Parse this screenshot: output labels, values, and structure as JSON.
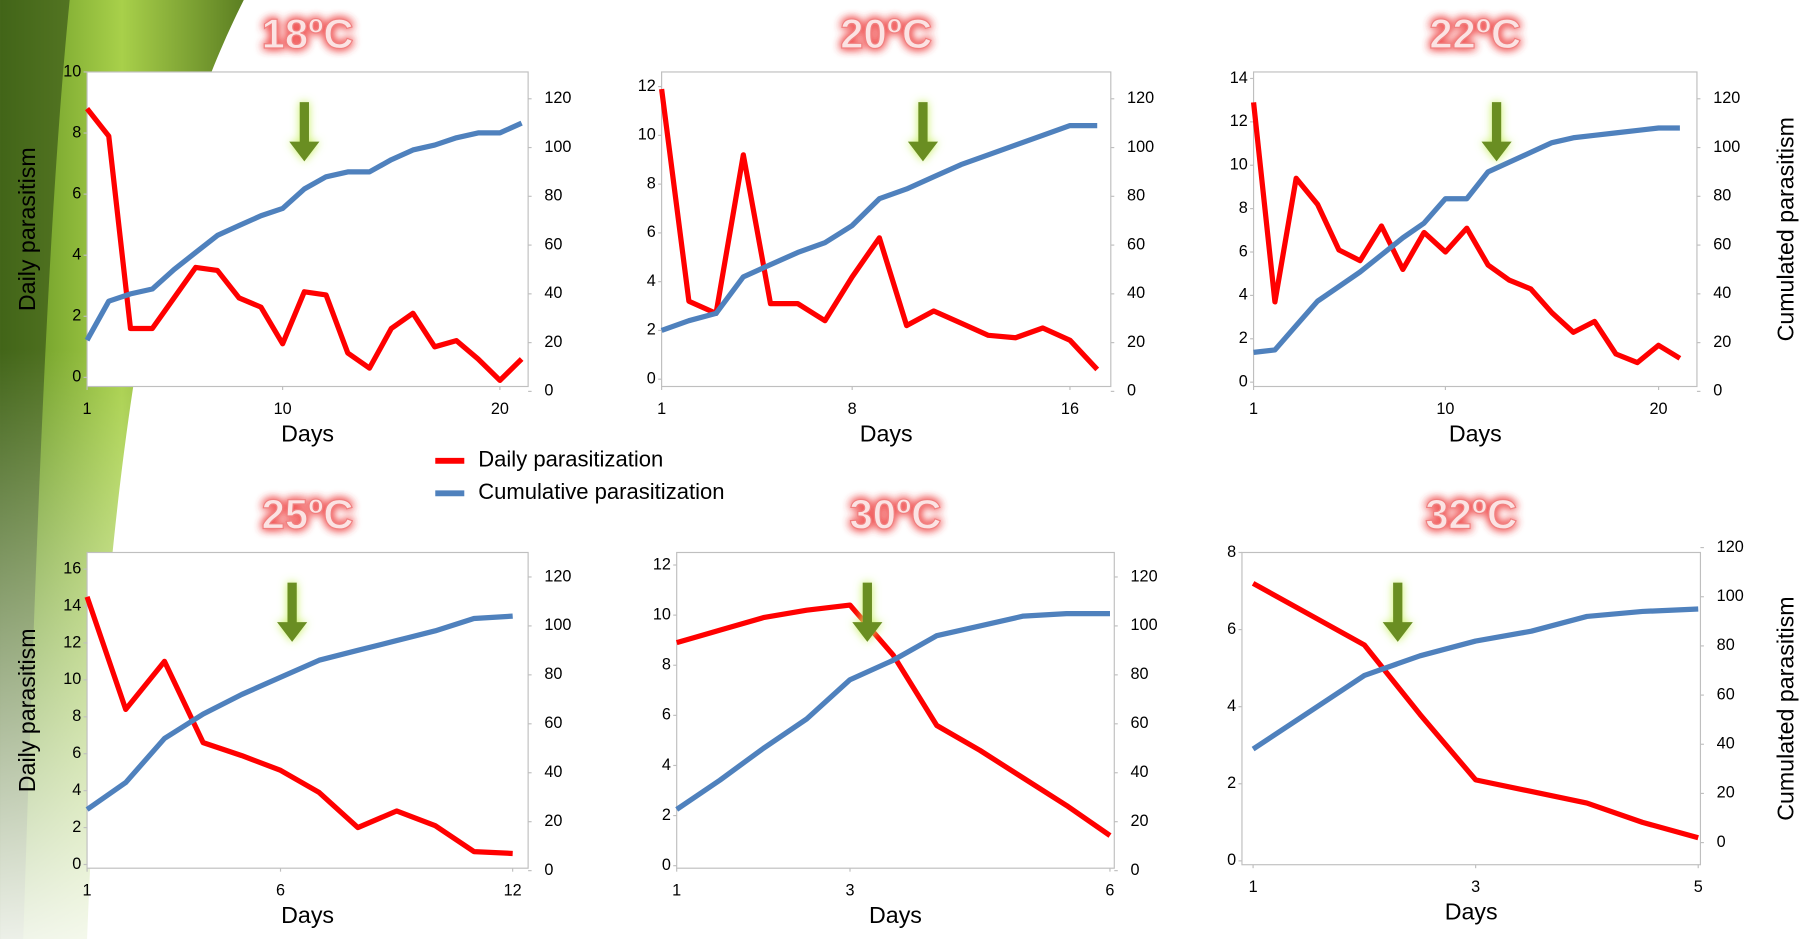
{
  "chart_data": [
    {
      "type": "line",
      "title": "18ºC",
      "xlabel": "Days",
      "ylabel": "Daily parasitism",
      "x": [
        1,
        2,
        3,
        4,
        5,
        6,
        7,
        8,
        9,
        10,
        11,
        12,
        13,
        14,
        15,
        16,
        17,
        18,
        19,
        20,
        21
      ],
      "xlim": [
        1,
        21.3
      ],
      "xticks": [
        1,
        10,
        20
      ],
      "ylim": [
        -0.3,
        10
      ],
      "yticks": [
        0,
        2,
        4,
        6,
        8,
        10
      ],
      "y2lim": [
        2,
        131
      ],
      "y2ticks": [
        0,
        20,
        40,
        60,
        80,
        100,
        120
      ],
      "arrow_x": 11,
      "series": [
        {
          "name": "Daily parasitization",
          "color": "#ff0000",
          "values": [
            8.8,
            7.9,
            1.6,
            1.6,
            2.6,
            3.6,
            3.5,
            2.6,
            2.3,
            1.1,
            2.8,
            2.7,
            0.8,
            0.3,
            1.6,
            2.1,
            1.0,
            1.2,
            0.6,
            -0.1,
            0.6
          ]
        },
        {
          "name": "Cumulative parasitization",
          "color": "#4f81bd",
          "axis": "y2",
          "values": [
            21,
            37,
            40,
            42,
            50,
            57,
            64,
            68,
            72,
            75,
            83,
            88,
            90,
            90,
            95,
            99,
            101,
            104,
            106,
            106,
            110
          ]
        }
      ]
    },
    {
      "type": "line",
      "title": "20ºC",
      "xlabel": "Days",
      "x": [
        1,
        2,
        3,
        4,
        5,
        6,
        7,
        8,
        9,
        10,
        11,
        12,
        13,
        14,
        15,
        16,
        17
      ],
      "xlim": [
        1,
        17.5
      ],
      "xticks": [
        1,
        8,
        16
      ],
      "ylim": [
        -0.3,
        12.6
      ],
      "yticks": [
        0,
        2,
        4,
        6,
        8,
        10,
        12
      ],
      "y2lim": [
        2,
        131
      ],
      "y2ticks": [
        0,
        20,
        40,
        60,
        80,
        100,
        120
      ],
      "arrow_x": 10.6,
      "series": [
        {
          "name": "Daily parasitization",
          "color": "#ff0000",
          "values": [
            11.9,
            3.2,
            2.7,
            9.2,
            3.1,
            3.1,
            2.4,
            4.2,
            5.8,
            2.2,
            2.8,
            2.3,
            1.8,
            1.7,
            2.1,
            1.6,
            0.4
          ]
        },
        {
          "name": "Cumulative parasitization",
          "color": "#4f81bd",
          "axis": "y2",
          "values": [
            25,
            29,
            32,
            47,
            52,
            57,
            61,
            68,
            79,
            83,
            88,
            93,
            97,
            101,
            105,
            109,
            109
          ]
        }
      ]
    },
    {
      "type": "line",
      "title": "22ºC",
      "xlabel": "Days",
      "y2label": "Cumulated parasitism",
      "x": [
        1,
        2,
        3,
        4,
        5,
        6,
        7,
        8,
        9,
        10,
        11,
        12,
        13,
        14,
        15,
        16,
        17,
        18,
        19,
        20,
        21
      ],
      "xlim": [
        1,
        21.8
      ],
      "xticks": [
        1,
        10,
        20
      ],
      "ylim": [
        -0.2,
        14.3
      ],
      "yticks": [
        0,
        2,
        4,
        6,
        8,
        10,
        12,
        14
      ],
      "y2lim": [
        2,
        131
      ],
      "y2ticks": [
        0,
        20,
        40,
        60,
        80,
        100,
        120
      ],
      "arrow_x": 12.4,
      "series": [
        {
          "name": "Daily parasitization",
          "color": "#ff0000",
          "values": [
            12.9,
            3.7,
            9.4,
            8.2,
            6.1,
            5.6,
            7.2,
            5.2,
            6.9,
            6.0,
            7.1,
            5.4,
            4.7,
            4.3,
            3.2,
            2.3,
            2.8,
            1.3,
            0.9,
            1.7,
            1.1
          ]
        },
        {
          "name": "Cumulative parasitization",
          "color": "#4f81bd",
          "axis": "y2",
          "values": [
            16,
            17,
            27,
            37,
            43,
            49,
            56,
            63,
            69,
            79,
            79,
            90,
            94,
            98,
            102,
            104,
            105,
            106,
            107,
            108,
            108
          ]
        }
      ]
    },
    {
      "type": "line",
      "title": "25ºC",
      "xlabel": "Days",
      "ylabel": "Daily parasitism",
      "x": [
        1,
        2,
        3,
        4,
        5,
        6,
        7,
        8,
        9,
        10,
        11,
        12
      ],
      "xlim": [
        1,
        12.4
      ],
      "xticks": [
        1,
        6,
        12
      ],
      "ylim": [
        -0.2,
        16.9
      ],
      "yticks": [
        0,
        2,
        4,
        6,
        8,
        10,
        12,
        14,
        16
      ],
      "y2lim": [
        1,
        130
      ],
      "y2ticks": [
        0,
        20,
        40,
        60,
        80,
        100,
        120
      ],
      "arrow_x": 6.3,
      "series": [
        {
          "name": "Daily parasitization",
          "color": "#ff0000",
          "values": [
            14.5,
            8.4,
            11.0,
            6.6,
            5.9,
            5.1,
            3.9,
            2.0,
            2.9,
            2.1,
            0.7,
            0.6
          ]
        },
        {
          "name": "Cumulative parasitization",
          "color": "#4f81bd",
          "axis": "y2",
          "values": [
            25,
            36,
            54,
            64,
            72,
            79,
            86,
            90,
            94,
            98,
            103,
            104
          ]
        }
      ]
    },
    {
      "type": "line",
      "title": "30ºC",
      "xlabel": "Days",
      "x": [
        1,
        1.5,
        2,
        2.5,
        3,
        3.5,
        4,
        4.5,
        5,
        5.5,
        6
      ],
      "xlim": [
        1,
        6.05
      ],
      "xticks": [
        1,
        3,
        6
      ],
      "ylim": [
        -0.1,
        12.5
      ],
      "yticks": [
        0,
        2,
        4,
        6,
        8,
        10,
        12
      ],
      "y2lim": [
        1,
        130
      ],
      "y2ticks": [
        0,
        20,
        40,
        60,
        80,
        100,
        120
      ],
      "arrow_x": 3.2,
      "series": [
        {
          "name": "Daily parasitization",
          "color": "#ff0000",
          "values": [
            8.9,
            9.4,
            9.9,
            10.2,
            10.4,
            8.4,
            5.6,
            4.6,
            3.5,
            2.4,
            1.2
          ]
        },
        {
          "name": "Cumulative parasitization",
          "color": "#4f81bd",
          "axis": "y2",
          "values": [
            25,
            37,
            50,
            62,
            78,
            86,
            96,
            100,
            104,
            105,
            105
          ]
        }
      ]
    },
    {
      "type": "line",
      "title": "32ºC",
      "xlabel": "Days",
      "y2label": "Cumulated parasitism",
      "x": [
        1,
        1.5,
        2,
        2.5,
        3,
        3.5,
        4,
        4.5,
        5
      ],
      "xlim": [
        0.9,
        5.02
      ],
      "xticks": [
        1,
        3,
        5
      ],
      "ylim": [
        -0.1,
        8
      ],
      "yticks": [
        0,
        2,
        4,
        6,
        8
      ],
      "y2lim": [
        -9,
        118
      ],
      "y2ticks": [
        0,
        20,
        40,
        60,
        80,
        100,
        120
      ],
      "arrow_x": 2.3,
      "series": [
        {
          "name": "Daily parasitization",
          "color": "#ff0000",
          "values": [
            7.2,
            6.4,
            5.6,
            3.8,
            2.1,
            1.8,
            1.5,
            1.0,
            0.6
          ]
        },
        {
          "name": "Cumulative parasitization",
          "color": "#4f81bd",
          "axis": "y2",
          "values": [
            38,
            53,
            68,
            76,
            82,
            86,
            92,
            94,
            95
          ]
        }
      ]
    }
  ]
}
